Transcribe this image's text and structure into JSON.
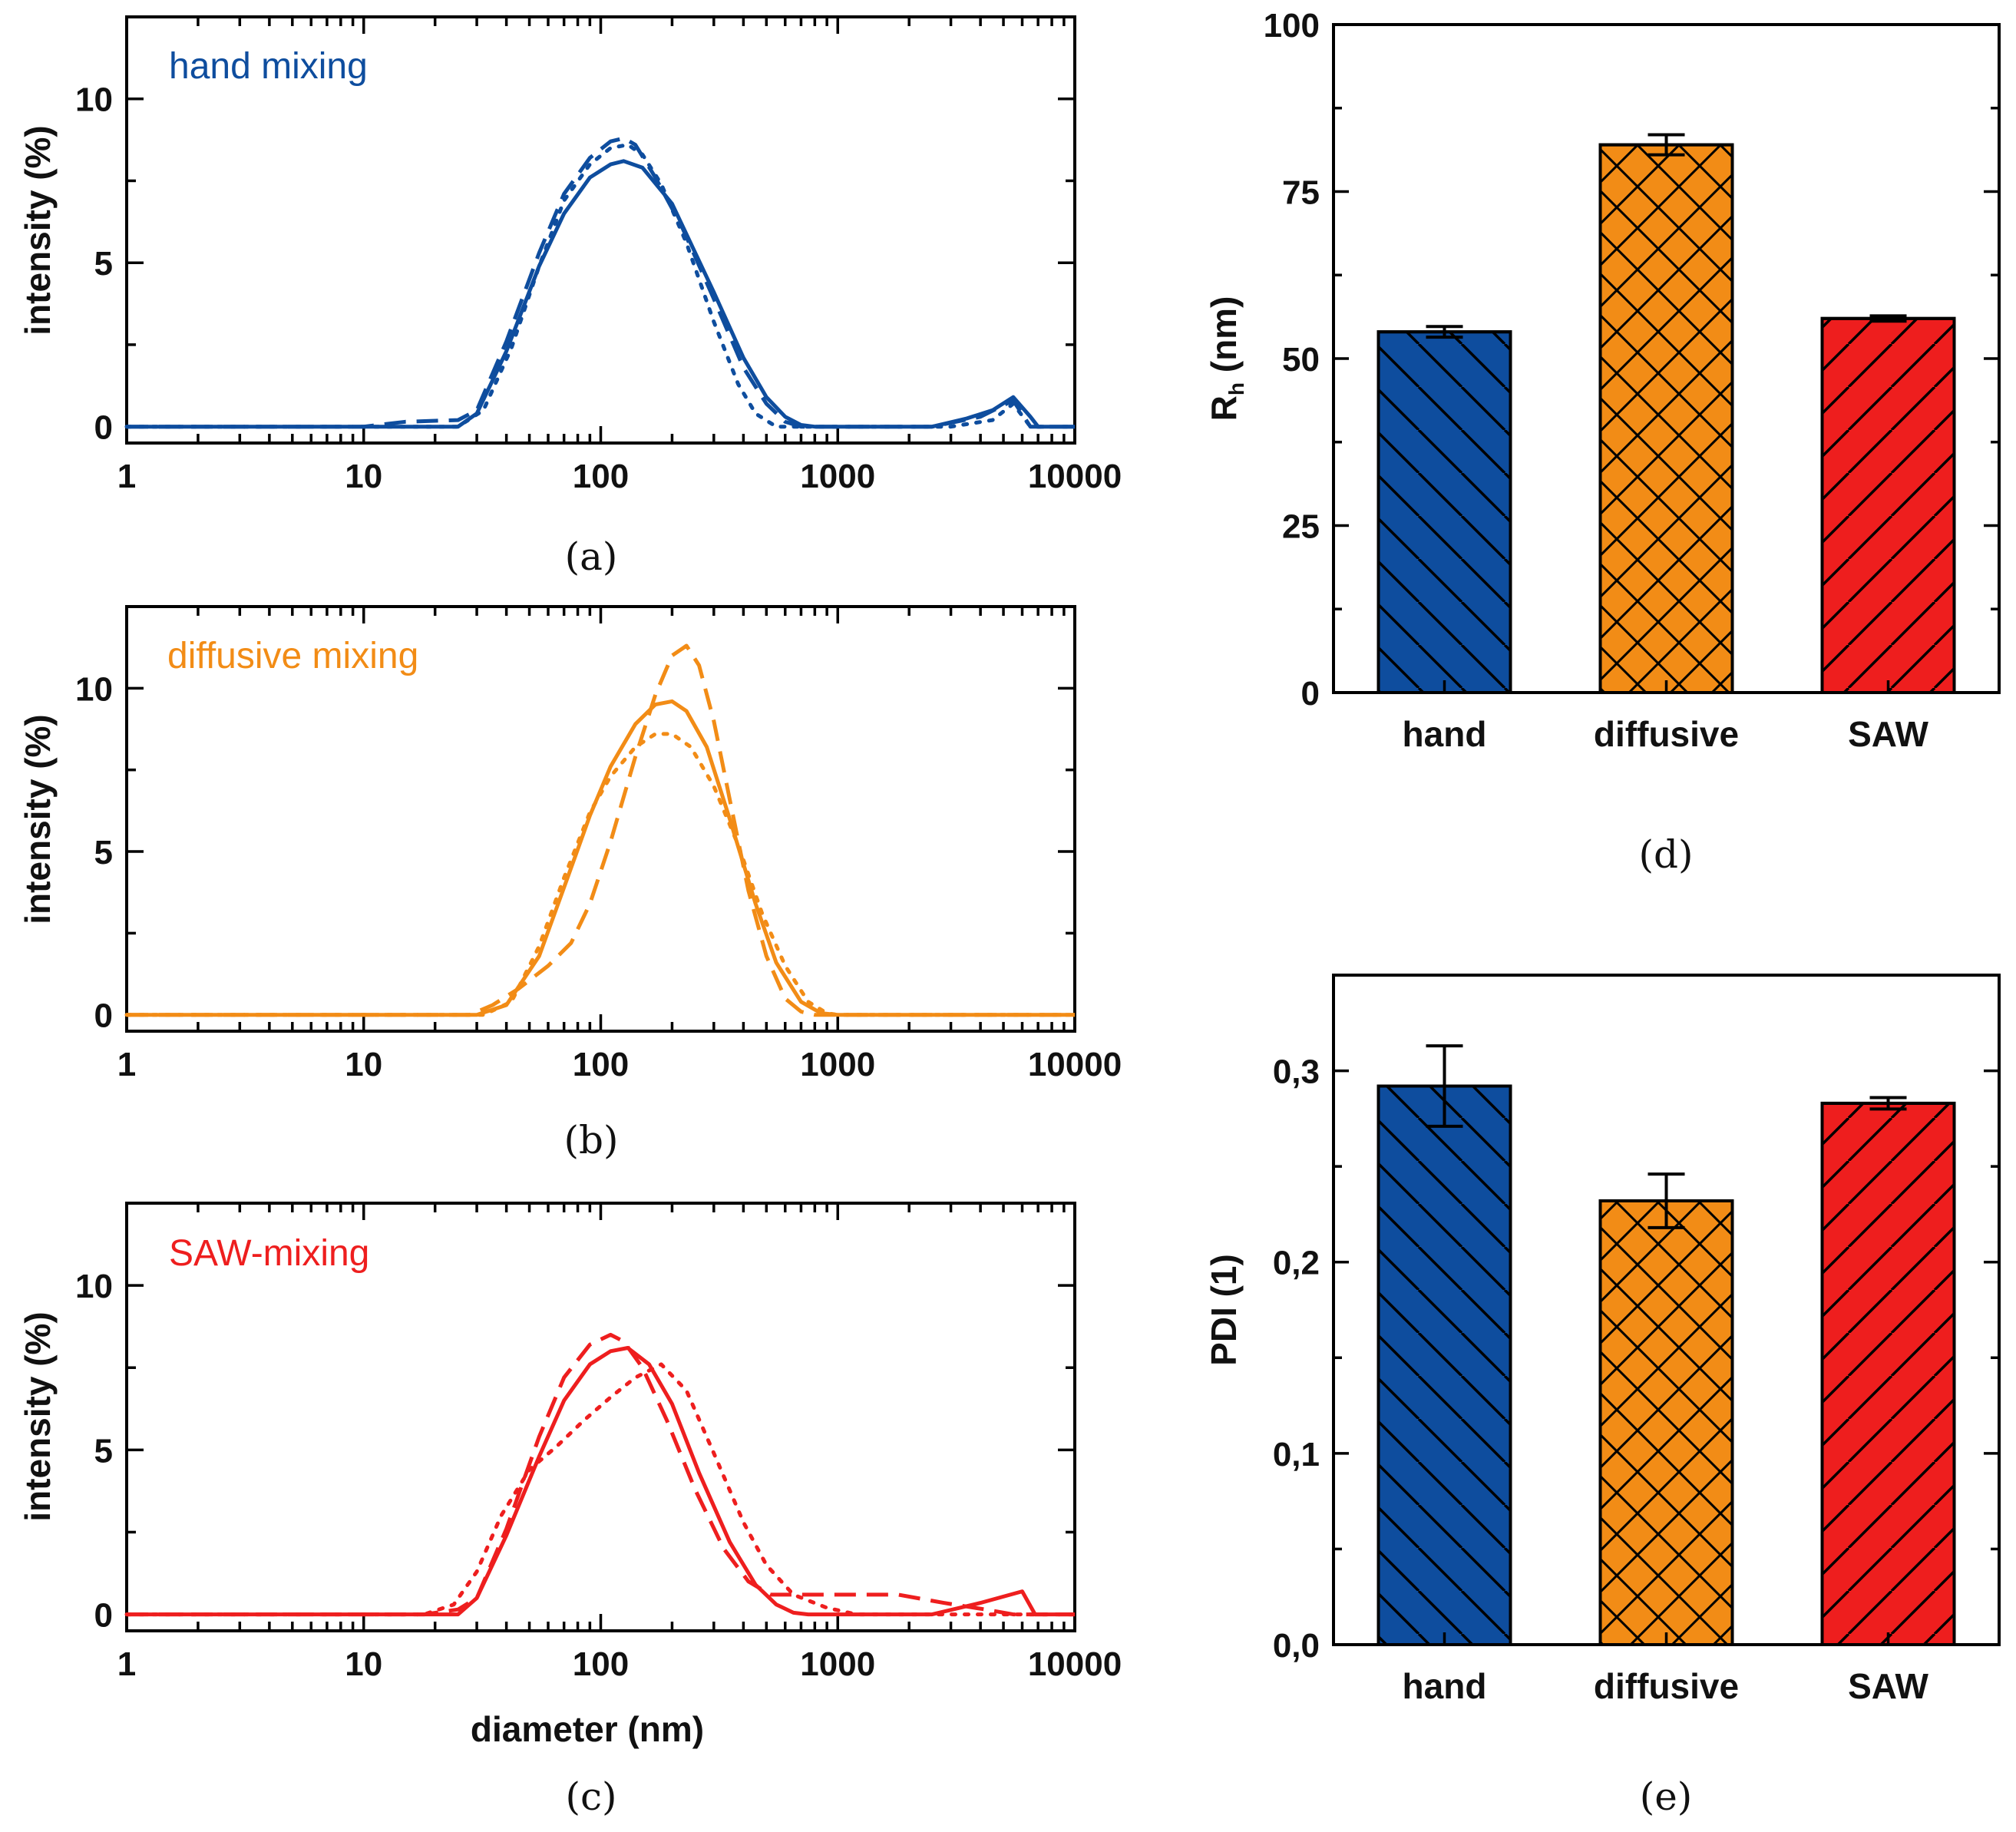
{
  "chart_data": [
    {
      "id": "a",
      "type": "line",
      "panel_label": "(a)",
      "inset_label": "hand mixing",
      "color": "#0E4D9E",
      "xscale": "log",
      "xlim": [
        1,
        10000
      ],
      "ylim": [
        -0.5,
        12.5
      ],
      "xticks": [
        1,
        10,
        100,
        1000,
        10000
      ],
      "xtick_labels": [
        "1",
        "10",
        "100",
        "1000",
        "10000"
      ],
      "yticks": [
        0,
        5,
        10
      ],
      "ytick_labels": [
        "0",
        "5",
        "10"
      ],
      "xlabel": "",
      "ylabel": "intensity (%)",
      "series": [
        {
          "name": "solid",
          "dash": "solid",
          "x": [
            1,
            12,
            25,
            30,
            40,
            55,
            70,
            90,
            110,
            125,
            150,
            200,
            300,
            400,
            500,
            600,
            700,
            800,
            2500,
            3500,
            4500,
            5500,
            6500,
            7000,
            10000
          ],
          "y": [
            0,
            0,
            0,
            0.4,
            2.3,
            4.9,
            6.5,
            7.6,
            8.0,
            8.1,
            7.9,
            6.8,
            4.1,
            2.1,
            0.9,
            0.3,
            0.05,
            0,
            0,
            0.25,
            0.5,
            0.9,
            0.3,
            0,
            0
          ]
        },
        {
          "name": "dashed",
          "dash": "dashed",
          "x": [
            1,
            10,
            15,
            25,
            30,
            40,
            55,
            70,
            90,
            110,
            125,
            140,
            170,
            220,
            300,
            400,
            500,
            600,
            700,
            2500,
            4000,
            5500,
            6500,
            10000
          ],
          "y": [
            0,
            0,
            0.15,
            0.2,
            0.5,
            2.6,
            5.3,
            7.1,
            8.2,
            8.7,
            8.8,
            8.6,
            7.6,
            6.1,
            3.9,
            1.8,
            0.7,
            0.15,
            0,
            0,
            0.3,
            0.8,
            0,
            0
          ]
        },
        {
          "name": "dotted",
          "dash": "dotted",
          "x": [
            1,
            25,
            32,
            42,
            55,
            70,
            90,
            110,
            130,
            150,
            180,
            230,
            300,
            380,
            450,
            550,
            3000,
            4500,
            5500,
            6500,
            10000
          ],
          "y": [
            0,
            0,
            0.5,
            2.4,
            4.9,
            6.9,
            8.0,
            8.5,
            8.6,
            8.3,
            7.4,
            5.6,
            3.2,
            1.3,
            0.4,
            0,
            0,
            0.2,
            0.7,
            0,
            0
          ]
        }
      ]
    },
    {
      "id": "b",
      "type": "line",
      "panel_label": "(b)",
      "inset_label": "diffusive mixing",
      "color": "#F28C16",
      "xscale": "log",
      "xlim": [
        1,
        10000
      ],
      "ylim": [
        -0.5,
        12.5
      ],
      "xticks": [
        1,
        10,
        100,
        1000,
        10000
      ],
      "xtick_labels": [
        "1",
        "10",
        "100",
        "1000",
        "10000"
      ],
      "yticks": [
        0,
        5,
        10
      ],
      "ytick_labels": [
        "0",
        "5",
        "10"
      ],
      "xlabel": "",
      "ylabel": "intensity (%)",
      "series": [
        {
          "name": "solid",
          "dash": "solid",
          "x": [
            1,
            30,
            40,
            55,
            70,
            90,
            110,
            140,
            170,
            200,
            230,
            280,
            350,
            450,
            550,
            700,
            850,
            1000,
            10000
          ],
          "y": [
            0,
            0,
            0.3,
            1.8,
            3.9,
            6.1,
            7.6,
            8.9,
            9.5,
            9.6,
            9.3,
            8.2,
            6.0,
            3.4,
            1.6,
            0.4,
            0.05,
            0,
            0
          ]
        },
        {
          "name": "dashed",
          "dash": "dashed",
          "x": [
            1,
            28,
            35,
            45,
            60,
            75,
            90,
            110,
            140,
            170,
            200,
            230,
            260,
            300,
            350,
            420,
            500,
            600,
            700,
            800,
            10000
          ],
          "y": [
            0,
            0,
            0.3,
            0.8,
            1.5,
            2.2,
            3.4,
            5.3,
            7.9,
            9.8,
            11.0,
            11.3,
            10.7,
            9.0,
            6.6,
            3.8,
            1.8,
            0.5,
            0.1,
            0,
            0
          ]
        },
        {
          "name": "dotted",
          "dash": "dotted",
          "x": [
            1,
            32,
            42,
            55,
            70,
            90,
            110,
            140,
            170,
            200,
            240,
            300,
            380,
            480,
            600,
            750,
            900,
            1000,
            10000
          ],
          "y": [
            0,
            0,
            0.4,
            2.1,
            4.2,
            6.2,
            7.3,
            8.2,
            8.6,
            8.6,
            8.2,
            7.0,
            5.2,
            3.1,
            1.5,
            0.4,
            0.05,
            0,
            0
          ]
        }
      ]
    },
    {
      "id": "c",
      "type": "line",
      "panel_label": "(c)",
      "inset_label": "SAW-mixing",
      "color": "#EE1E1E",
      "xscale": "log",
      "xlim": [
        1,
        10000
      ],
      "ylim": [
        -0.5,
        12.5
      ],
      "xticks": [
        1,
        10,
        100,
        1000,
        10000
      ],
      "xtick_labels": [
        "1",
        "10",
        "100",
        "1000",
        "10000"
      ],
      "yticks": [
        0,
        5,
        10
      ],
      "ytick_labels": [
        "0",
        "5",
        "10"
      ],
      "xlabel": "diameter (nm)",
      "ylabel": "intensity (%)",
      "series": [
        {
          "name": "solid",
          "dash": "solid",
          "x": [
            1,
            18,
            25,
            30,
            40,
            55,
            70,
            90,
            110,
            130,
            160,
            200,
            260,
            350,
            450,
            550,
            650,
            750,
            2500,
            4000,
            6000,
            6800,
            10000
          ],
          "y": [
            0,
            0,
            0,
            0.5,
            2.4,
            4.8,
            6.5,
            7.6,
            8.0,
            8.1,
            7.6,
            6.4,
            4.3,
            2.2,
            0.9,
            0.3,
            0.05,
            0,
            0,
            0.35,
            0.7,
            0,
            0
          ]
        },
        {
          "name": "dashed",
          "dash": "dashed",
          "x": [
            1,
            18,
            25,
            30,
            40,
            55,
            70,
            90,
            110,
            125,
            150,
            190,
            250,
            330,
            420,
            520,
            620,
            750,
            1000,
            1800,
            2800,
            4200,
            5500,
            10000
          ],
          "y": [
            0,
            0,
            0.15,
            0.5,
            2.6,
            5.4,
            7.2,
            8.2,
            8.5,
            8.3,
            7.5,
            5.9,
            3.8,
            2.0,
            1.0,
            0.6,
            0.6,
            0.6,
            0.6,
            0.6,
            0.35,
            0.15,
            0,
            0
          ]
        },
        {
          "name": "dotted",
          "dash": "dotted",
          "x": [
            1,
            18,
            24,
            30,
            38,
            50,
            65,
            85,
            110,
            140,
            180,
            230,
            300,
            400,
            500,
            650,
            900,
            1200,
            10000
          ],
          "y": [
            0,
            0,
            0.3,
            1.3,
            3.0,
            4.4,
            5.1,
            5.9,
            6.6,
            7.2,
            7.6,
            6.8,
            4.9,
            2.8,
            1.5,
            0.6,
            0.2,
            0,
            0
          ]
        }
      ]
    },
    {
      "id": "d",
      "type": "bar",
      "panel_label": "(d)",
      "categories": [
        "hand",
        "diffusive",
        "SAW"
      ],
      "values": [
        54,
        82,
        56
      ],
      "errors": [
        0.8,
        1.5,
        0.4
      ],
      "colors": [
        "#0E4D9E",
        "#F28C16",
        "#EE1E1E"
      ],
      "patterns": [
        "diag-left",
        "crosshatch",
        "diag-right"
      ],
      "ylim": [
        0,
        100
      ],
      "yticks": [
        0,
        25,
        50,
        75,
        100
      ],
      "ytick_labels": [
        "0",
        "25",
        "50",
        "75",
        "100"
      ],
      "ylabel_main": "R",
      "ylabel_sub": "h",
      "ylabel_unit": " (nm)"
    },
    {
      "id": "e",
      "type": "bar",
      "panel_label": "(e)",
      "categories": [
        "hand",
        "diffusive",
        "SAW"
      ],
      "values": [
        0.292,
        0.232,
        0.283
      ],
      "errors": [
        0.021,
        0.014,
        0.003
      ],
      "colors": [
        "#0E4D9E",
        "#F28C16",
        "#EE1E1E"
      ],
      "patterns": [
        "diag-left",
        "crosshatch",
        "diag-right"
      ],
      "ylim": [
        0,
        0.35
      ],
      "yticks": [
        0,
        0.1,
        0.2,
        0.3
      ],
      "ytick_labels": [
        "0,0",
        "0,1",
        "0,2",
        "0,3"
      ],
      "ylabel": "PDI (1)"
    }
  ]
}
